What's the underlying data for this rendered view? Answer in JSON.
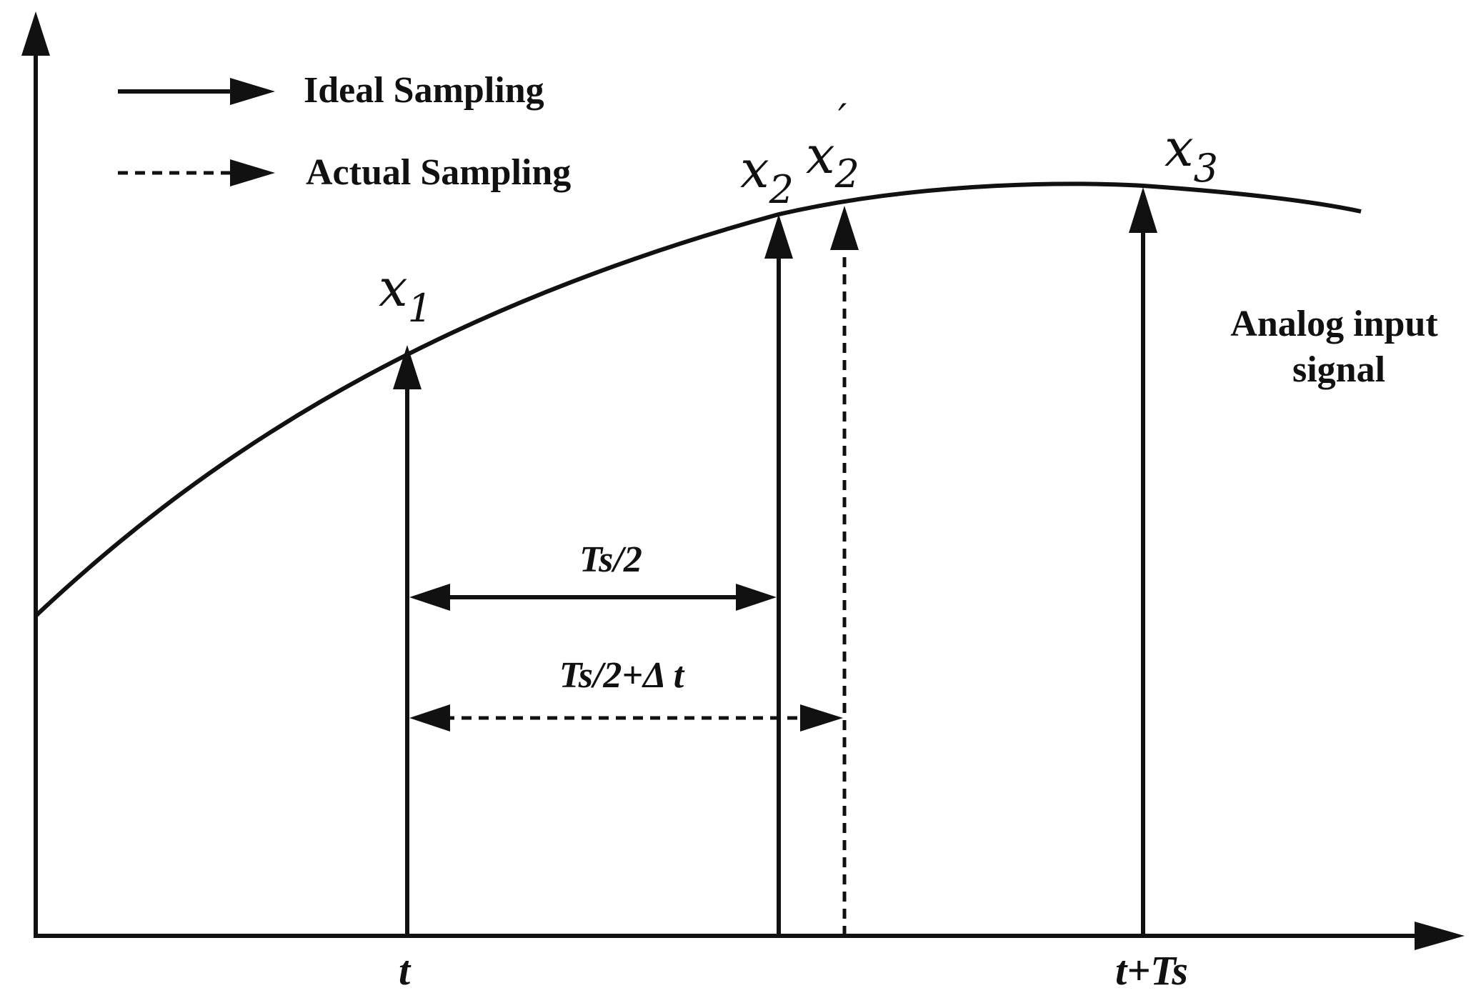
{
  "legend": {
    "ideal": "Ideal Sampling",
    "actual": "Actual Sampling"
  },
  "signal_label": [
    "Analog input",
    "signal"
  ],
  "samples": {
    "x1": {
      "base": "x",
      "sub": "1"
    },
    "x2": {
      "base": "x",
      "sub": "2"
    },
    "x2_prime": {
      "base": "x",
      "sub": "2",
      "sup": "′"
    },
    "x3": {
      "base": "x",
      "sub": "3"
    }
  },
  "intervals": {
    "ideal": "Ts/2",
    "actual": "Ts/2+Δ t"
  },
  "x_ticks": {
    "t": "t",
    "t_plus_ts": "t+Ts"
  }
}
